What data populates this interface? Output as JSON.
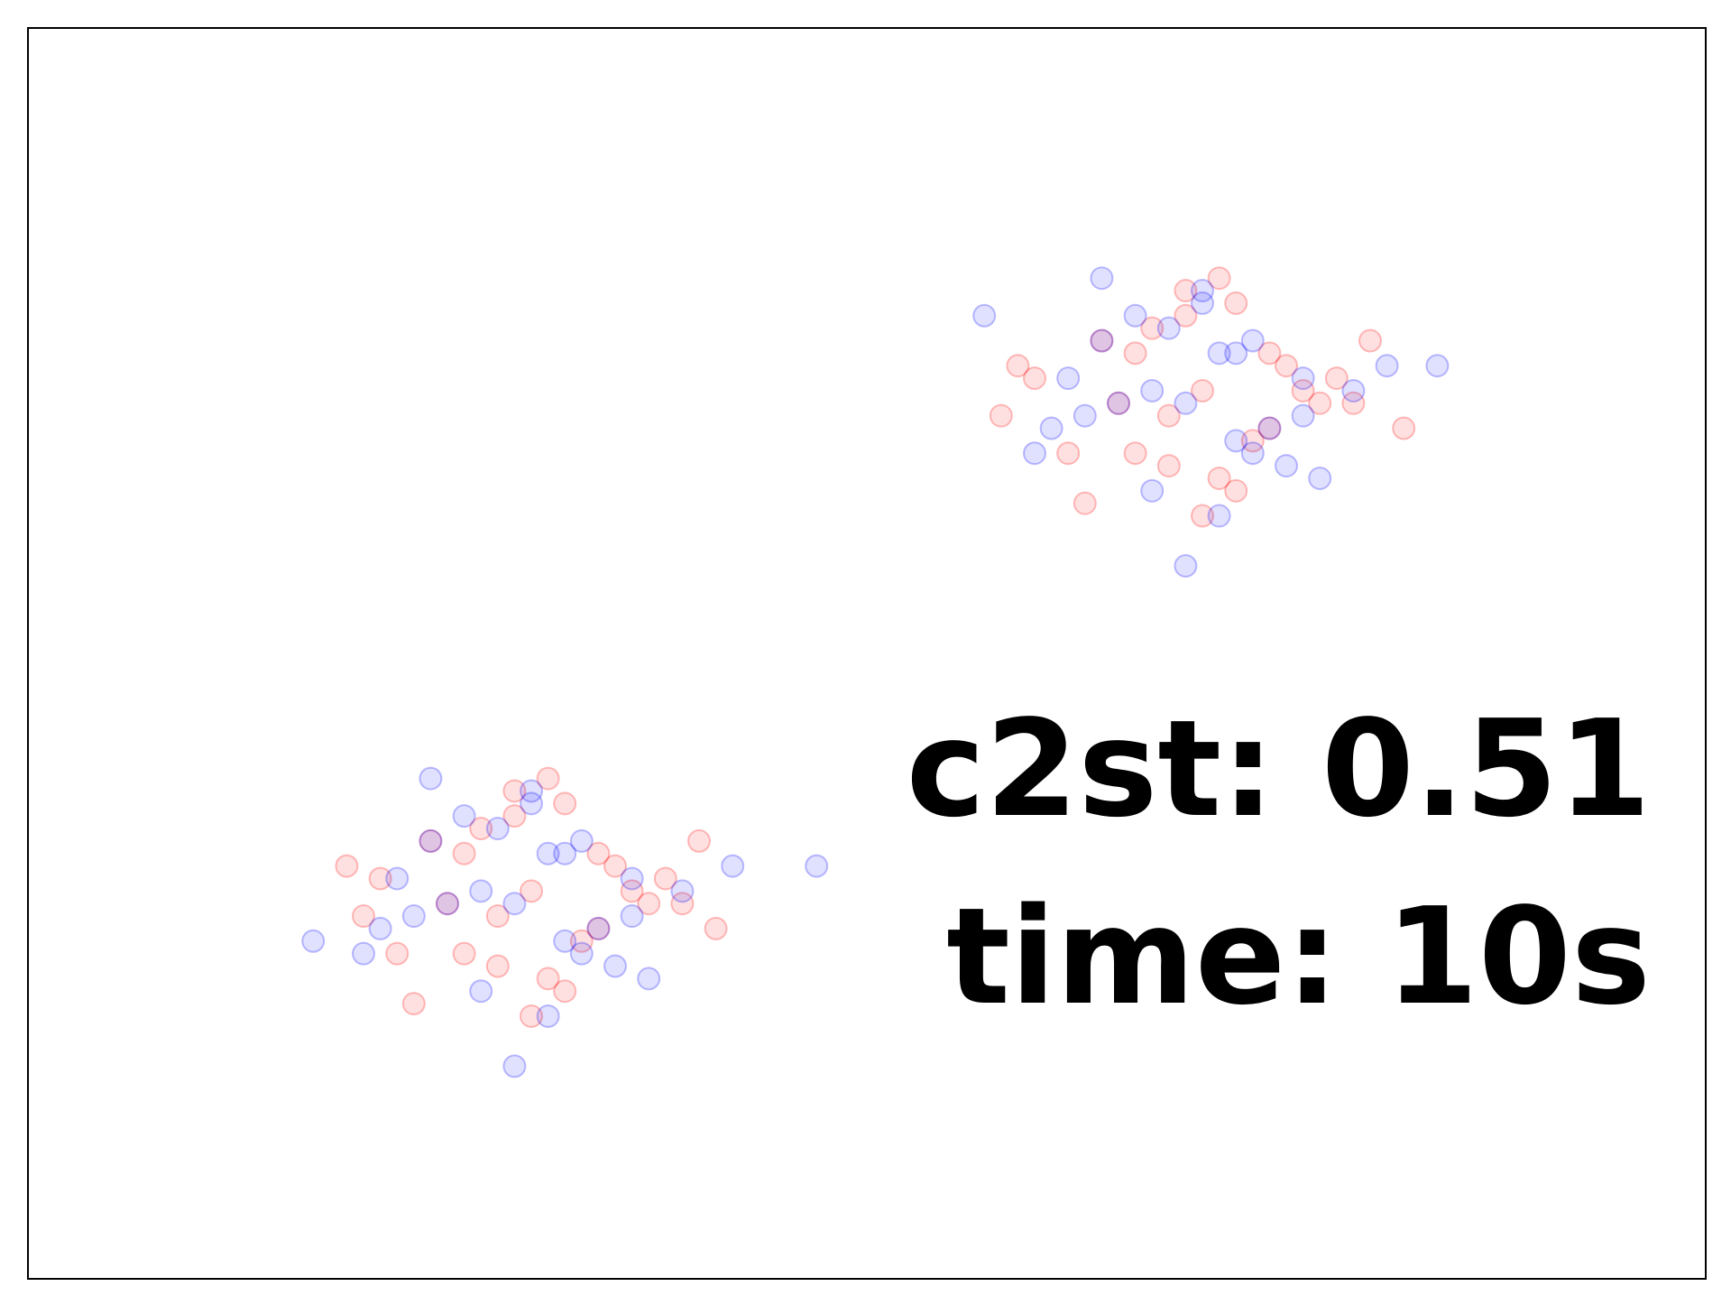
{
  "chart_data": {
    "type": "scatter",
    "annotations": [
      "c2st: 0.51",
      "time: 10s"
    ],
    "xlim": [
      0,
      100
    ],
    "ylim": [
      0,
      100
    ],
    "series": [
      {
        "color": "#ff0000",
        "x": [
          70,
          66,
          74,
          62,
          78,
          69,
          72,
          65,
          80,
          58,
          71,
          68,
          75,
          63,
          77,
          67,
          73,
          60,
          82,
          70,
          64,
          76,
          69,
          71,
          59,
          79,
          66,
          74,
          68,
          72,
          30,
          26,
          34,
          22,
          38,
          29,
          32,
          25,
          40,
          20,
          31,
          28,
          35,
          23,
          37,
          27,
          33,
          21,
          41,
          30,
          24,
          36,
          29,
          31,
          19,
          39,
          26,
          34,
          28,
          32
        ],
        "y": [
          71,
          74,
          68,
          66,
          72,
          77,
          63,
          70,
          75,
          69,
          80,
          65,
          73,
          62,
          70,
          76,
          67,
          72,
          68,
          61,
          75,
          71,
          79,
          64,
          73,
          70,
          66,
          74,
          69,
          78,
          31,
          34,
          28,
          26,
          32,
          37,
          23,
          30,
          35,
          29,
          40,
          25,
          33,
          22,
          30,
          36,
          27,
          32,
          28,
          21,
          35,
          31,
          39,
          24,
          33,
          30,
          26,
          34,
          29,
          38
        ]
      },
      {
        "color": "#0000ff",
        "x": [
          69,
          73,
          64,
          76,
          61,
          70,
          67,
          79,
          72,
          57,
          75,
          66,
          71,
          84,
          63,
          68,
          74,
          62,
          77,
          70,
          65,
          72,
          81,
          60,
          69,
          73,
          67,
          76,
          64,
          71,
          29,
          33,
          24,
          36,
          21,
          30,
          27,
          39,
          32,
          17,
          35,
          26,
          31,
          47,
          23,
          28,
          34,
          22,
          37,
          30,
          25,
          32,
          42,
          20,
          29,
          33,
          27,
          36,
          24,
          31
        ],
        "y": [
          70,
          66,
          75,
          72,
          68,
          79,
          63,
          71,
          74,
          77,
          65,
          77,
          61,
          73,
          69,
          76,
          68,
          72,
          64,
          78,
          70,
          67,
          73,
          66,
          57,
          75,
          71,
          69,
          80,
          74,
          30,
          26,
          35,
          32,
          28,
          39,
          23,
          31,
          34,
          27,
          25,
          37,
          21,
          33,
          29,
          36,
          28,
          32,
          24,
          38,
          30,
          27,
          33,
          26,
          17,
          35,
          31,
          29,
          40,
          34
        ]
      }
    ]
  }
}
